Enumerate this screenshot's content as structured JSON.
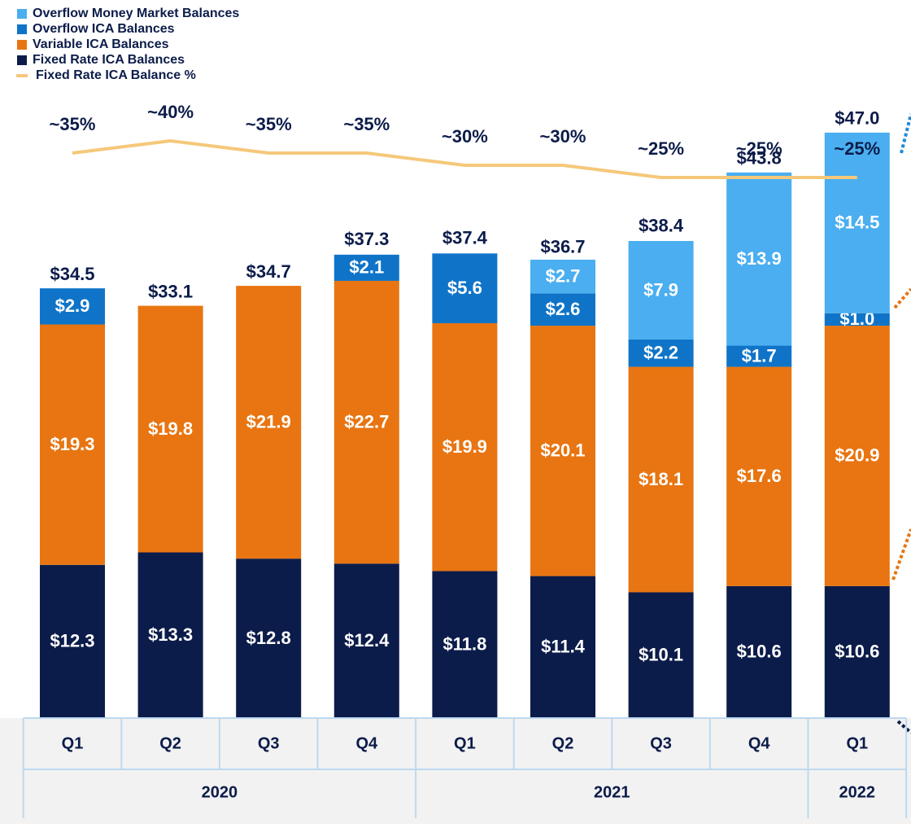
{
  "chart_data": {
    "type": "bar",
    "stacked": true,
    "categories": [
      "Q1",
      "Q2",
      "Q3",
      "Q4",
      "Q1",
      "Q2",
      "Q3",
      "Q4",
      "Q1"
    ],
    "category_groups": [
      "2020",
      null,
      null,
      null,
      "2021",
      null,
      null,
      null,
      "2022"
    ],
    "series": [
      {
        "name": "Fixed Rate ICA Balances",
        "color": "#0c1c4a",
        "values": [
          12.3,
          13.3,
          12.8,
          12.4,
          11.8,
          11.4,
          10.1,
          10.6,
          10.6
        ],
        "value_labels": [
          "$12.3",
          "$13.3",
          "$12.8",
          "$12.4",
          "$11.8",
          "$11.4",
          "$10.1",
          "$10.6",
          "$10.6"
        ]
      },
      {
        "name": "Variable ICA Balances",
        "color": "#e87511",
        "values": [
          19.3,
          19.8,
          21.9,
          22.7,
          19.9,
          20.1,
          18.1,
          17.6,
          20.9
        ],
        "value_labels": [
          "$19.3",
          "$19.8",
          "$21.9",
          "$22.7",
          "$19.9",
          "$20.1",
          "$18.1",
          "$17.6",
          "$20.9"
        ]
      },
      {
        "name": "Overflow ICA Balances",
        "color": "#0f74c8",
        "values": [
          2.9,
          null,
          null,
          2.1,
          5.6,
          2.6,
          2.2,
          1.7,
          1.0
        ],
        "value_labels": [
          "$2.9",
          null,
          null,
          "$2.1",
          "$5.6",
          "$2.6",
          "$2.2",
          "$1.7",
          "$1.0"
        ]
      },
      {
        "name": "Overflow Money Market Balances",
        "color": "#4aaef0",
        "values": [
          null,
          null,
          null,
          null,
          null,
          2.7,
          7.9,
          13.9,
          14.5
        ],
        "value_labels": [
          null,
          null,
          null,
          null,
          null,
          "$2.7",
          "$7.9",
          "$13.9",
          "$14.5"
        ]
      },
      {
        "name": "Fixed Rate ICA Balance %",
        "color": "#f5c87a",
        "type": "line",
        "values": [
          35,
          40,
          35,
          35,
          30,
          30,
          25,
          25,
          25
        ],
        "value_labels": [
          "~35%",
          "~40%",
          "~35%",
          "~35%",
          "~30%",
          "~30%",
          "~25%",
          "~25%",
          "~25%"
        ]
      }
    ],
    "totals": [
      34.5,
      33.1,
      34.7,
      37.3,
      37.4,
      36.7,
      38.4,
      43.8,
      47.0
    ],
    "total_labels": [
      "$34.5",
      "$33.1",
      "$34.7",
      "$37.3",
      "$37.4",
      "$36.7",
      "$38.4",
      "$43.8",
      "$47.0"
    ]
  }
}
